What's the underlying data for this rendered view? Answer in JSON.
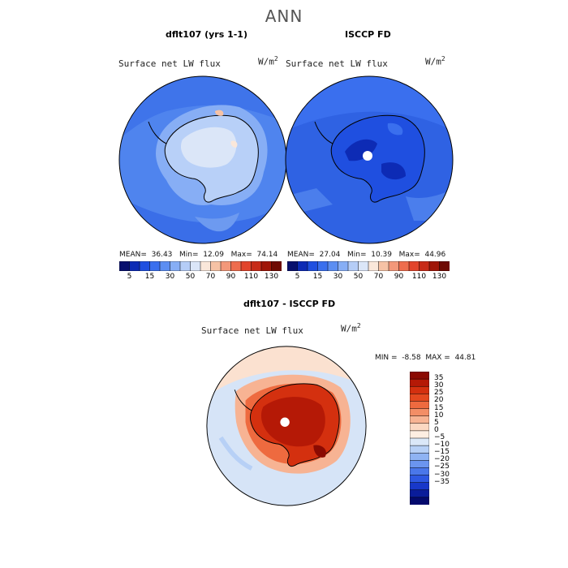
{
  "page_title": "ANN",
  "panels": [
    {
      "title": "dflt107 (yrs 1-1)",
      "variable": "Surface net LW flux",
      "units_base": "W/m",
      "units_exp": "2",
      "mean_label": "MEAN=",
      "mean": "36.43",
      "min_label": "Min=",
      "min": "12.09",
      "max_label": "Max=",
      "max": "74.14"
    },
    {
      "title": "ISCCP FD",
      "variable": "Surface net LW flux",
      "units_base": "W/m",
      "units_exp": "2",
      "mean_label": "MEAN=",
      "mean": "27.04",
      "min_label": "Min=",
      "min": "10.39",
      "max_label": "Max=",
      "max": "44.96"
    }
  ],
  "top_colorbar": {
    "ticks": [
      "5",
      "15",
      "30",
      "50",
      "70",
      "90",
      "110",
      "130"
    ],
    "colors": [
      "#08106e",
      "#0d2bb5",
      "#1f4fe0",
      "#3a6fee",
      "#5c8ef2",
      "#87aef5",
      "#b5cdf7",
      "#dbe6f8",
      "#fae7da",
      "#f6c2a5",
      "#f3987a",
      "#ee6d4e",
      "#e2452c",
      "#c72b18",
      "#a01608",
      "#6f0a03"
    ]
  },
  "diff_panel": {
    "title": "dflt107 - ISCCP FD",
    "variable": "Surface net LW flux",
    "units_base": "W/m",
    "units_exp": "2",
    "min_label": "MIN =",
    "min": "-8.58",
    "max_label": "MAX =",
    "max": "44.81"
  },
  "diff_colorbar": {
    "ticks": [
      "35",
      "30",
      "25",
      "20",
      "15",
      "10",
      "5",
      "0",
      "−5",
      "−10",
      "−15",
      "−20",
      "−25",
      "−30",
      "−35"
    ],
    "colors": [
      "#8b0a02",
      "#b51906",
      "#d4300f",
      "#e4491f",
      "#ee6a3f",
      "#f38e66",
      "#f7b393",
      "#fbd8c2",
      "#fdeee2",
      "#dbe8f8",
      "#b7d0f6",
      "#8fb3f3",
      "#6b95ef",
      "#4a77ea",
      "#2e58e2",
      "#1838c9",
      "#0a1c9a",
      "#040a6d"
    ]
  },
  "colors": {
    "land_outline": "#000000",
    "ocean_top_left": "#4f84ee",
    "ocean_top_right": "#2f62e3",
    "diff_ocean": "#d6e4f7"
  }
}
